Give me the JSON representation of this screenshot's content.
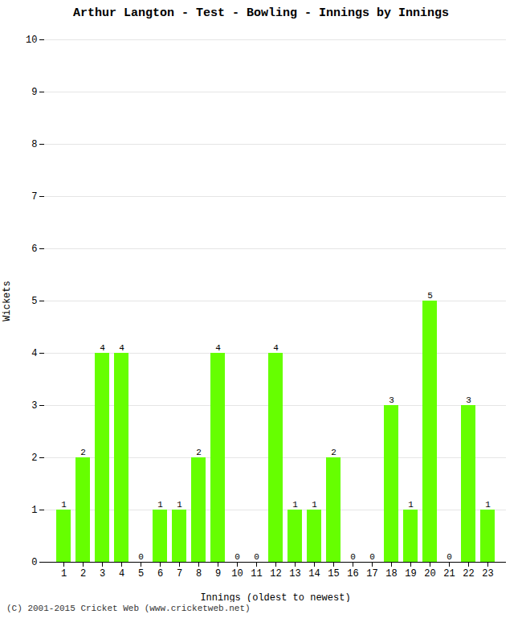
{
  "chart_data": {
    "type": "bar",
    "title": "Arthur Langton - Test - Bowling - Innings by Innings",
    "xlabel": "Innings (oldest to newest)",
    "ylabel": "Wickets",
    "categories": [
      "1",
      "2",
      "3",
      "4",
      "5",
      "6",
      "7",
      "8",
      "9",
      "10",
      "11",
      "12",
      "13",
      "14",
      "15",
      "16",
      "17",
      "18",
      "19",
      "20",
      "21",
      "22",
      "23"
    ],
    "values": [
      1,
      2,
      4,
      4,
      0,
      1,
      1,
      2,
      4,
      0,
      0,
      4,
      1,
      1,
      2,
      0,
      0,
      3,
      1,
      5,
      0,
      3,
      1
    ],
    "color": "#66ff00",
    "ylim": [
      0,
      10
    ],
    "yticks": [
      0,
      1,
      2,
      3,
      4,
      5,
      6,
      7,
      8,
      9,
      10
    ],
    "grid": true,
    "data_labels": true,
    "caption": "(C) 2001-2015 Cricket Web (www.cricketweb.net)"
  }
}
